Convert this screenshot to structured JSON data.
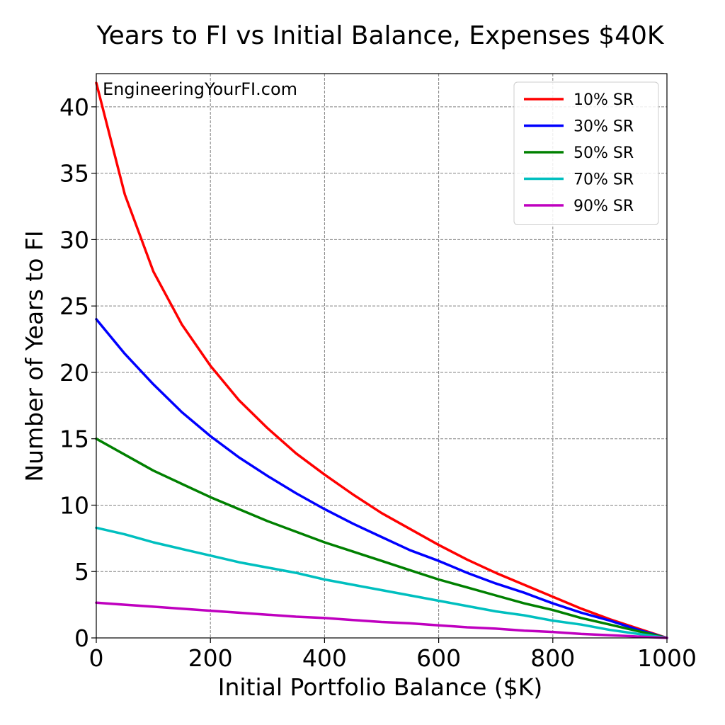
{
  "chart_data": {
    "type": "line",
    "title": "Years to FI vs Initial Balance, Expenses $40K",
    "xlabel": "Initial Portfolio Balance ($K)",
    "ylabel": "Number of Years to FI",
    "xlim": [
      0,
      1000
    ],
    "ylim": [
      0,
      42.5
    ],
    "x_ticks": [
      0,
      200,
      400,
      600,
      800,
      1000
    ],
    "y_ticks": [
      0,
      5,
      10,
      15,
      20,
      25,
      30,
      35,
      40
    ],
    "grid": true,
    "legend_position": "top-right",
    "annotation": "EngineeringYourFI.com",
    "x": [
      0,
      50,
      100,
      150,
      200,
      250,
      300,
      350,
      400,
      450,
      500,
      550,
      600,
      650,
      700,
      750,
      800,
      850,
      900,
      950,
      1000
    ],
    "series": [
      {
        "name": "10% SR",
        "color": "#ff0000",
        "values": [
          41.8,
          33.4,
          27.6,
          23.6,
          20.5,
          17.9,
          15.8,
          13.9,
          12.3,
          10.8,
          9.4,
          8.2,
          7.0,
          5.9,
          4.9,
          4.0,
          3.1,
          2.2,
          1.4,
          0.7,
          0.0
        ]
      },
      {
        "name": "30% SR",
        "color": "#0000ff",
        "values": [
          24.0,
          21.4,
          19.1,
          17.0,
          15.2,
          13.6,
          12.2,
          10.9,
          9.7,
          8.6,
          7.6,
          6.6,
          5.8,
          4.9,
          4.1,
          3.4,
          2.6,
          1.9,
          1.3,
          0.6,
          0.0
        ]
      },
      {
        "name": "50% SR",
        "color": "#008000",
        "values": [
          15.0,
          13.8,
          12.6,
          11.6,
          10.6,
          9.7,
          8.8,
          8.0,
          7.2,
          6.5,
          5.8,
          5.1,
          4.4,
          3.8,
          3.2,
          2.6,
          2.1,
          1.5,
          1.0,
          0.5,
          0.0
        ]
      },
      {
        "name": "70% SR",
        "color": "#00bfbf",
        "values": [
          8.3,
          7.8,
          7.2,
          6.7,
          6.2,
          5.7,
          5.3,
          4.9,
          4.4,
          4.0,
          3.6,
          3.2,
          2.8,
          2.4,
          2.0,
          1.7,
          1.3,
          1.0,
          0.6,
          0.3,
          0.0
        ]
      },
      {
        "name": "90% SR",
        "color": "#bf00bf",
        "values": [
          2.65,
          2.5,
          2.35,
          2.2,
          2.05,
          1.9,
          1.75,
          1.6,
          1.5,
          1.35,
          1.2,
          1.1,
          0.95,
          0.8,
          0.7,
          0.55,
          0.45,
          0.3,
          0.2,
          0.1,
          0.0
        ]
      }
    ]
  }
}
